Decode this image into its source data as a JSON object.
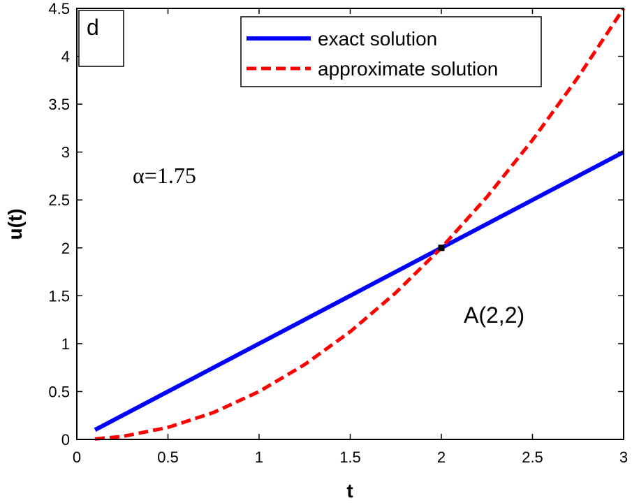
{
  "chart_data": {
    "type": "line",
    "title": "",
    "xlabel": "t",
    "ylabel": "u(t)",
    "xlim": [
      0,
      3
    ],
    "ylim": [
      0,
      4.5
    ],
    "xticks": [
      0,
      0.5,
      1,
      1.5,
      2,
      2.5,
      3
    ],
    "xtick_labels": [
      "0",
      "0.5",
      "1",
      "1.5",
      "2",
      "2.5",
      "3"
    ],
    "yticks": [
      0,
      0.5,
      1,
      1.5,
      2,
      2.5,
      3,
      3.5,
      4,
      4.5
    ],
    "ytick_labels": [
      "0",
      "0.5",
      "1",
      "1.5",
      "2",
      "2.5",
      "3",
      "3.5",
      "4",
      "4.5"
    ],
    "grid": false,
    "legend_position": "top-right",
    "series": [
      {
        "name": "exact solution",
        "color": "#0000ff",
        "style": "solid",
        "x": [
          0.1,
          0.5,
          1,
          1.5,
          2,
          2.5,
          3
        ],
        "y": [
          0.1,
          0.5,
          1,
          1.5,
          2,
          2.5,
          3
        ]
      },
      {
        "name": "approximate solution",
        "color": "#ff0000",
        "style": "dashed",
        "x": [
          0.1,
          0.25,
          0.5,
          0.75,
          1,
          1.25,
          1.5,
          1.75,
          2,
          2.25,
          2.5,
          2.75,
          3
        ],
        "y": [
          0.005,
          0.031,
          0.125,
          0.281,
          0.5,
          0.781,
          1.125,
          1.531,
          2,
          2.531,
          3.125,
          3.781,
          4.5
        ]
      }
    ],
    "annotations": {
      "panel_label": "d",
      "alpha_label": "α=1.75",
      "point_label": "A(2,2)",
      "point": {
        "x": 2,
        "y": 2
      }
    }
  }
}
